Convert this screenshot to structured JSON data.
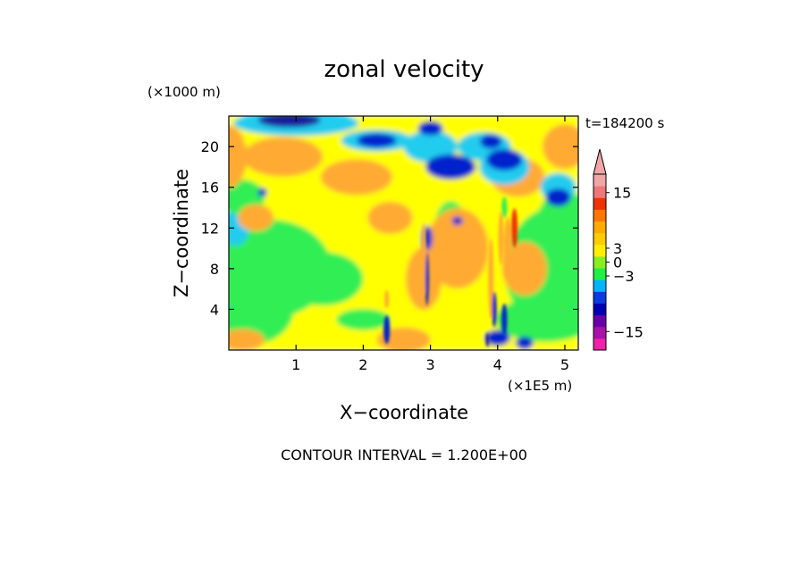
{
  "chart_data": {
    "type": "heatmap",
    "title": "zonal velocity",
    "xlabel": "X−coordinate",
    "ylabel": "Z−coordinate",
    "x_unit": "(×1E5 m)",
    "y_unit": "(×1000 m)",
    "time_label": "t=184200 s",
    "footer": "CONTOUR INTERVAL = 1.200E+00",
    "xlim": [
      0,
      5.2
    ],
    "ylim": [
      0,
      23
    ],
    "x_ticks": [
      "1",
      "2",
      "3",
      "4",
      "5"
    ],
    "y_ticks": [
      "4",
      "8",
      "12",
      "16",
      "20"
    ],
    "colorbar": {
      "labels": [
        {
          "text": "15",
          "value": 15
        },
        {
          "text": "3",
          "value": 3
        },
        {
          "text": "0",
          "value": 0
        },
        {
          "text": "−3",
          "value": -3
        },
        {
          "text": "−15",
          "value": -15
        }
      ],
      "colors": [
        "#ee22aa",
        "#aa10aa",
        "#6a00a8",
        "#0000b4",
        "#0a3ce0",
        "#00b4ff",
        "#22ee44",
        "#88ee22",
        "#ffee00",
        "#ffcc00",
        "#ffaa00",
        "#ff7700",
        "#ee3300",
        "#ee7777",
        "#f0a6a6"
      ]
    },
    "field_colors": {
      "green": "#33ee55",
      "yellow": "#ffff00",
      "orange": "#ffaa33",
      "cyan": "#22ccee",
      "blue": "#0022cc",
      "navy": "#1a1a99"
    }
  }
}
